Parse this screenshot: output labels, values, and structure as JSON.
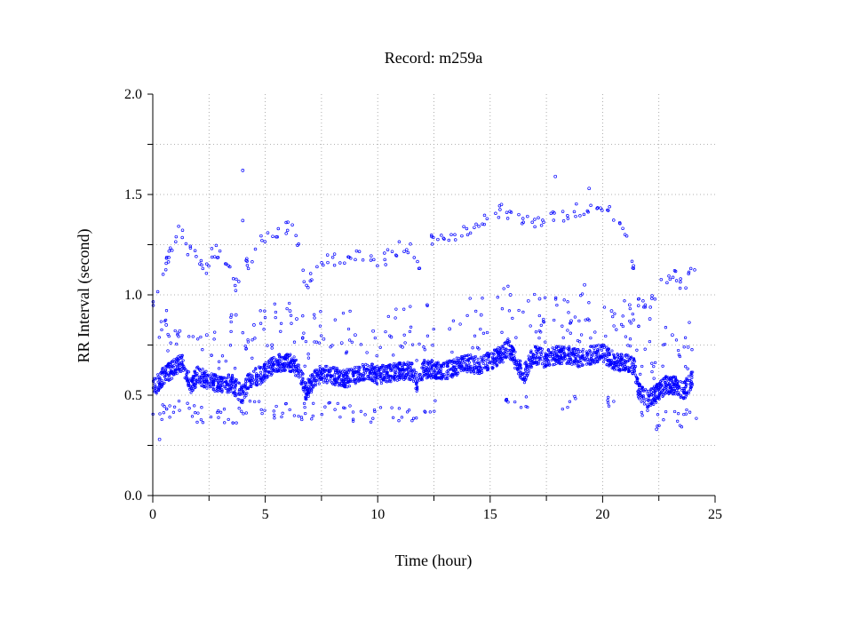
{
  "chart_data": {
    "type": "scatter",
    "title": "Record:  m259a",
    "xlabel": "Time (hour)",
    "ylabel": "RR Interval (second)",
    "xlim": [
      0,
      25
    ],
    "ylim": [
      0.0,
      2.0
    ],
    "x_ticks": [
      0,
      5,
      10,
      15,
      20,
      25
    ],
    "x_tick_labels": [
      "0",
      "5",
      "10",
      "15",
      "20",
      "25"
    ],
    "y_ticks": [
      0.0,
      0.5,
      1.0,
      1.5,
      2.0
    ],
    "y_tick_labels": [
      "0.0",
      "0.5",
      "1.0",
      "1.5",
      "2.0"
    ],
    "grid": true,
    "marker_color": "#0000ff",
    "main_trend": [
      [
        0.0,
        0.53
      ],
      [
        0.5,
        0.6
      ],
      [
        0.8,
        0.62
      ],
      [
        1.0,
        0.64
      ],
      [
        1.3,
        0.66
      ],
      [
        1.5,
        0.6
      ],
      [
        1.7,
        0.55
      ],
      [
        2.0,
        0.6
      ],
      [
        2.5,
        0.57
      ],
      [
        3.0,
        0.55
      ],
      [
        3.5,
        0.56
      ],
      [
        4.0,
        0.5
      ],
      [
        4.3,
        0.58
      ],
      [
        4.8,
        0.6
      ],
      [
        5.0,
        0.62
      ],
      [
        5.5,
        0.66
      ],
      [
        6.0,
        0.67
      ],
      [
        6.5,
        0.63
      ],
      [
        6.8,
        0.52
      ],
      [
        7.0,
        0.55
      ],
      [
        7.3,
        0.6
      ],
      [
        8.0,
        0.6
      ],
      [
        8.5,
        0.58
      ],
      [
        9.0,
        0.6
      ],
      [
        9.5,
        0.62
      ],
      [
        10.0,
        0.6
      ],
      [
        10.5,
        0.61
      ],
      [
        11.0,
        0.62
      ],
      [
        11.5,
        0.62
      ],
      [
        11.8,
        0.55
      ],
      [
        12.0,
        0.63
      ],
      [
        12.5,
        0.63
      ],
      [
        13.0,
        0.62
      ],
      [
        13.5,
        0.64
      ],
      [
        14.0,
        0.66
      ],
      [
        14.5,
        0.65
      ],
      [
        15.0,
        0.67
      ],
      [
        15.5,
        0.7
      ],
      [
        15.8,
        0.74
      ],
      [
        16.0,
        0.7
      ],
      [
        16.5,
        0.6
      ],
      [
        16.8,
        0.68
      ],
      [
        17.0,
        0.7
      ],
      [
        17.5,
        0.68
      ],
      [
        18.0,
        0.7
      ],
      [
        18.5,
        0.7
      ],
      [
        19.0,
        0.68
      ],
      [
        19.5,
        0.7
      ],
      [
        20.0,
        0.71
      ],
      [
        20.5,
        0.67
      ],
      [
        21.0,
        0.66
      ],
      [
        21.4,
        0.65
      ],
      [
        21.6,
        0.52
      ],
      [
        22.0,
        0.48
      ],
      [
        22.3,
        0.5
      ],
      [
        22.8,
        0.55
      ],
      [
        23.2,
        0.55
      ],
      [
        23.6,
        0.52
      ],
      [
        24.0,
        0.58
      ]
    ],
    "upper_band": [
      [
        0.1,
        0.95
      ],
      [
        0.4,
        1.05
      ],
      [
        0.6,
        1.15
      ],
      [
        0.9,
        1.25
      ],
      [
        1.2,
        1.32
      ],
      [
        1.6,
        1.22
      ],
      [
        2.0,
        1.18
      ],
      [
        2.3,
        1.1
      ],
      [
        2.6,
        1.2
      ],
      [
        3.0,
        1.22
      ],
      [
        3.3,
        1.15
      ],
      [
        3.7,
        1.05
      ],
      [
        4.0,
        1.13
      ],
      [
        4.4,
        1.18
      ],
      [
        5.0,
        1.3
      ],
      [
        5.5,
        1.31
      ],
      [
        6.0,
        1.33
      ],
      [
        6.4,
        1.3
      ],
      [
        6.8,
        1.05
      ],
      [
        7.2,
        1.12
      ],
      [
        7.6,
        1.18
      ],
      [
        8.2,
        1.18
      ],
      [
        8.7,
        1.16
      ],
      [
        9.2,
        1.2
      ],
      [
        9.8,
        1.17
      ],
      [
        10.3,
        1.18
      ],
      [
        10.8,
        1.22
      ],
      [
        11.3,
        1.25
      ],
      [
        11.8,
        1.15
      ],
      [
        12.3,
        1.28
      ],
      [
        12.8,
        1.28
      ],
      [
        13.3,
        1.3
      ],
      [
        13.8,
        1.32
      ],
      [
        14.3,
        1.35
      ],
      [
        14.8,
        1.38
      ],
      [
        15.3,
        1.42
      ],
      [
        15.8,
        1.41
      ],
      [
        16.3,
        1.38
      ],
      [
        16.8,
        1.36
      ],
      [
        17.3,
        1.36
      ],
      [
        17.8,
        1.38
      ],
      [
        18.3,
        1.4
      ],
      [
        18.8,
        1.42
      ],
      [
        19.3,
        1.41
      ],
      [
        19.8,
        1.43
      ],
      [
        20.3,
        1.44
      ],
      [
        20.8,
        1.35
      ],
      [
        21.2,
        1.28
      ],
      [
        21.5,
        1.0
      ],
      [
        21.9,
        0.92
      ],
      [
        22.3,
        1.0
      ],
      [
        22.8,
        1.08
      ],
      [
        23.2,
        1.1
      ],
      [
        23.6,
        1.02
      ],
      [
        23.9,
        1.14
      ]
    ],
    "lower_band": [
      [
        0.2,
        0.4
      ],
      [
        0.6,
        0.42
      ],
      [
        1.0,
        0.45
      ],
      [
        1.6,
        0.42
      ],
      [
        2.2,
        0.4
      ],
      [
        2.8,
        0.4
      ],
      [
        3.4,
        0.4
      ],
      [
        4.0,
        0.4
      ],
      [
        4.6,
        0.44
      ],
      [
        5.2,
        0.42
      ],
      [
        5.8,
        0.42
      ],
      [
        6.5,
        0.4
      ],
      [
        7.0,
        0.42
      ],
      [
        7.8,
        0.43
      ],
      [
        8.5,
        0.42
      ],
      [
        9.2,
        0.41
      ],
      [
        10.0,
        0.4
      ],
      [
        10.8,
        0.41
      ],
      [
        11.6,
        0.4
      ],
      [
        12.3,
        0.45
      ],
      [
        15.8,
        0.48
      ],
      [
        16.4,
        0.46
      ],
      [
        18.5,
        0.46
      ],
      [
        20.3,
        0.46
      ],
      [
        22.0,
        0.42
      ],
      [
        22.6,
        0.38
      ],
      [
        23.5,
        0.38
      ],
      [
        23.9,
        0.4
      ]
    ],
    "scattered_outliers": [
      [
        4.0,
        1.62
      ],
      [
        4.0,
        1.37
      ],
      [
        17.9,
        1.59
      ],
      [
        19.4,
        1.53
      ],
      [
        15.5,
        1.45
      ],
      [
        0.3,
        0.28
      ],
      [
        22.4,
        0.33
      ],
      [
        3.7,
        0.9
      ],
      [
        6.1,
        0.92
      ],
      [
        6.4,
        0.88
      ],
      [
        0.6,
        0.85
      ],
      [
        1.2,
        0.82
      ],
      [
        2.4,
        0.8
      ],
      [
        3.5,
        0.9
      ],
      [
        4.5,
        0.85
      ],
      [
        5.3,
        0.75
      ],
      [
        7.6,
        0.78
      ],
      [
        8.4,
        0.76
      ],
      [
        9.0,
        0.8
      ],
      [
        9.8,
        0.82
      ],
      [
        10.6,
        0.79
      ],
      [
        11.1,
        0.74
      ],
      [
        12.2,
        0.95
      ],
      [
        13.2,
        0.83
      ],
      [
        14.6,
        0.9
      ],
      [
        15.9,
        1.0
      ],
      [
        16.7,
        0.97
      ],
      [
        17.2,
        0.98
      ],
      [
        18.6,
        0.87
      ],
      [
        19.2,
        1.05
      ],
      [
        20.4,
        0.92
      ],
      [
        21.2,
        0.95
      ],
      [
        22.1,
        0.88
      ],
      [
        23.1,
        0.8
      ],
      [
        23.8,
        0.74
      ]
    ]
  }
}
